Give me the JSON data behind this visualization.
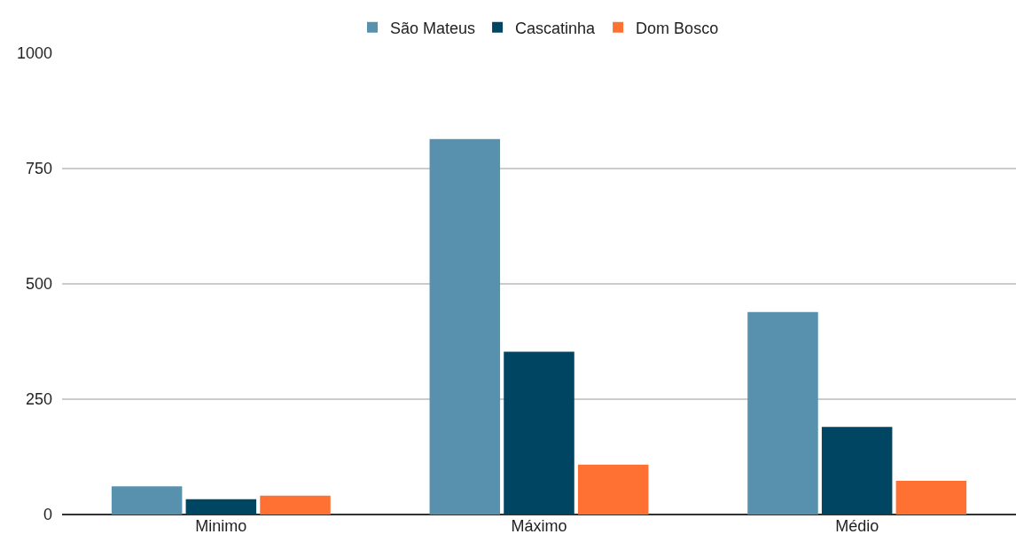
{
  "chart_data": {
    "type": "bar",
    "categories": [
      "Minimo",
      "Máximo",
      "Médio"
    ],
    "series": [
      {
        "name": "São Mateus",
        "color": "#5891ad",
        "values": [
          61,
          814,
          439
        ]
      },
      {
        "name": "Cascatinha",
        "color": "#004561",
        "values": [
          33,
          353,
          190
        ]
      },
      {
        "name": "Dom Bosco",
        "color": "#ff7033",
        "values": [
          41,
          108,
          73
        ]
      }
    ],
    "ylim": [
      0,
      1000
    ],
    "yticks": [
      0,
      250,
      500,
      750,
      1000
    ],
    "grid": "y",
    "legend": "top"
  }
}
